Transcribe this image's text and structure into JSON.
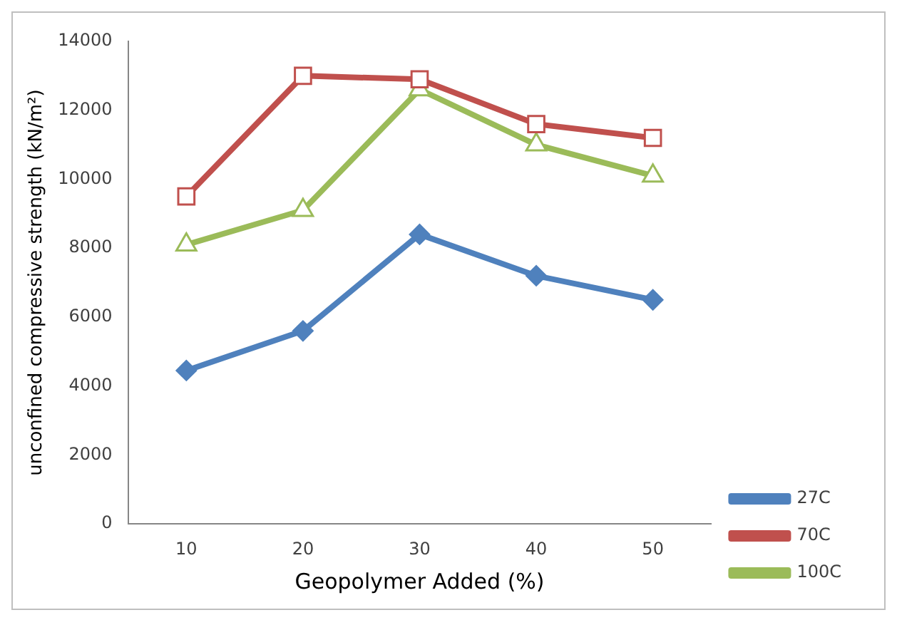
{
  "chart_data": {
    "type": "line",
    "xlabel": "Geopolymer Added (%)",
    "ylabel": "unconfined compressive strength (kN/m²)",
    "categories": [
      "10",
      "20",
      "30",
      "40",
      "50"
    ],
    "series": [
      {
        "name": "27C",
        "color": "#4f81bd",
        "marker": "diamond",
        "values": [
          4450,
          5600,
          8400,
          7200,
          6500
        ]
      },
      {
        "name": "70C",
        "color": "#c0504d",
        "marker": "square",
        "values": [
          9500,
          13000,
          12900,
          11600,
          11200
        ]
      },
      {
        "name": "100C",
        "color": "#9bbb59",
        "marker": "triangle",
        "values": [
          8100,
          9100,
          12600,
          11000,
          10100
        ]
      }
    ],
    "ylim": [
      0,
      14000
    ],
    "yticks": [
      0,
      2000,
      4000,
      6000,
      8000,
      10000,
      12000,
      14000
    ],
    "grid": false,
    "legend": "right"
  }
}
